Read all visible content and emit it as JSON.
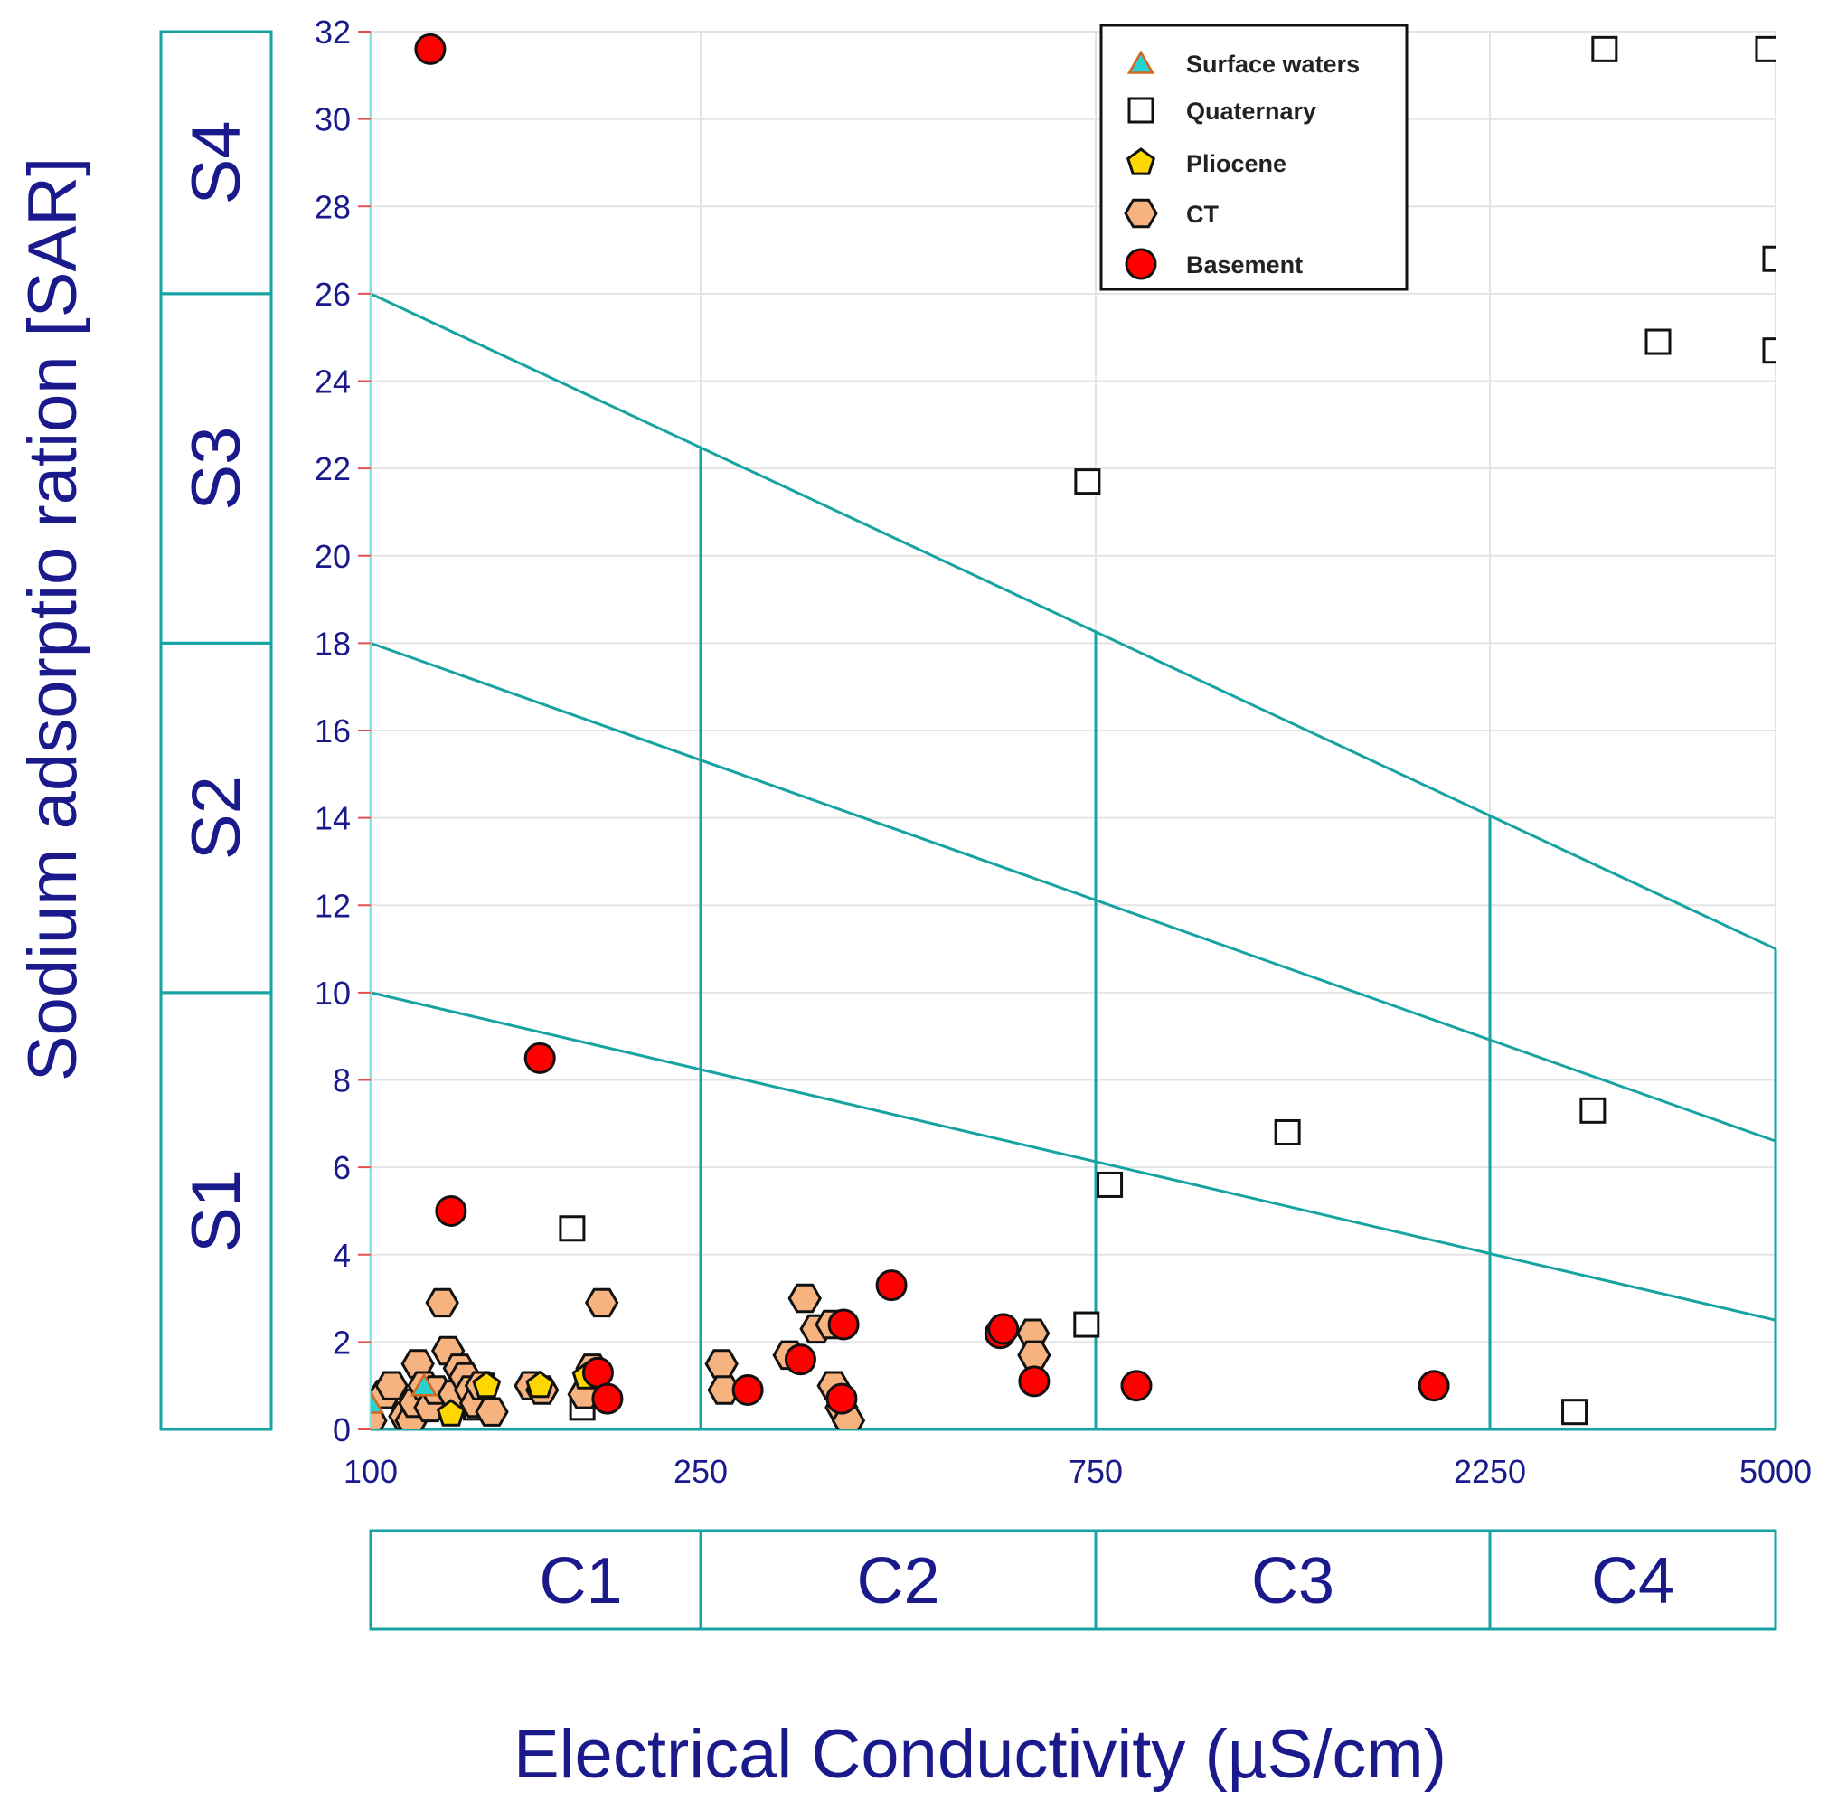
{
  "chart_data": {
    "type": "scatter",
    "title": "",
    "xlabel": "Electrical Conductivity (µS/cm)",
    "ylabel": "Sodium adsorptio ration [SAR]",
    "x_scale": "piecewise-log",
    "x_ticks": [
      100,
      250,
      750,
      2250,
      5000
    ],
    "x_tick_labels": [
      "100",
      "250",
      "750",
      "2250",
      "5000"
    ],
    "xlim": [
      100,
      5000
    ],
    "ylim": [
      0,
      32
    ],
    "y_ticks": [
      0,
      2,
      4,
      6,
      8,
      10,
      12,
      14,
      16,
      18,
      20,
      22,
      24,
      26,
      28,
      30,
      32
    ],
    "y_tick_labels": [
      "0",
      "2",
      "4",
      "6",
      "8",
      "10",
      "12",
      "14",
      "16",
      "18",
      "20",
      "22",
      "24",
      "26",
      "28",
      "30",
      "32"
    ],
    "grid": true,
    "legend_position": "top-right",
    "salinity_classes": [
      {
        "label": "C1",
        "from": 100,
        "to": 250
      },
      {
        "label": "C2",
        "from": 250,
        "to": 750
      },
      {
        "label": "C3",
        "from": 750,
        "to": 2250
      },
      {
        "label": "C4",
        "from": 2250,
        "to": 5000
      }
    ],
    "sodium_classes": [
      {
        "label": "S1",
        "from": 0,
        "to": 10
      },
      {
        "label": "S2",
        "from": 10,
        "to": 18
      },
      {
        "label": "S3",
        "from": 18,
        "to": 26
      },
      {
        "label": "S4",
        "from": 26,
        "to": 32
      }
    ],
    "boundary_lines": [
      {
        "name": "S1/S2",
        "points": [
          [
            100,
            10
          ],
          [
            5000,
            2.5
          ]
        ]
      },
      {
        "name": "S2/S3",
        "points": [
          [
            100,
            18
          ],
          [
            5000,
            6.6
          ]
        ]
      },
      {
        "name": "S3/S4",
        "points": [
          [
            100,
            26
          ],
          [
            5000,
            11
          ]
        ]
      }
    ],
    "series": [
      {
        "name": "Surface waters",
        "marker": "triangle",
        "color": "#2ad1d1",
        "points": [
          [
            100,
            0.6
          ],
          [
            116,
            1.0
          ]
        ]
      },
      {
        "name": "Quaternary",
        "marker": "square",
        "color": "#ffffff",
        "points": [
          [
            134,
            0.5
          ],
          [
            136,
            1.0
          ],
          [
            175,
            4.6
          ],
          [
            180,
            0.5
          ],
          [
            733,
            21.7
          ],
          [
            731,
            2.4
          ],
          [
            780,
            5.6
          ],
          [
            1280,
            6.8
          ],
          [
            3100,
            31.6
          ],
          [
            4900,
            31.6
          ],
          [
            5000,
            26.8
          ],
          [
            3600,
            24.9
          ],
          [
            5000,
            24.7
          ],
          [
            3000,
            7.3
          ],
          [
            2850,
            0.4
          ]
        ]
      },
      {
        "name": "Pliocene",
        "marker": "pentagon",
        "color": "#ffd700",
        "points": [
          [
            138,
            1.0
          ],
          [
            125,
            0.35
          ],
          [
            160,
            1.0
          ],
          [
            182,
            1.2
          ]
        ]
      },
      {
        "name": "CT",
        "marker": "hexagon",
        "color": "#f6b37f",
        "points": [
          [
            104,
            0.8
          ],
          [
            106,
            1.0
          ],
          [
            110,
            0.3
          ],
          [
            112,
            0.2
          ],
          [
            113,
            0.6
          ],
          [
            114,
            1.5
          ],
          [
            116,
            1.0
          ],
          [
            118,
            0.5
          ],
          [
            120,
            0.9
          ],
          [
            122,
            2.9
          ],
          [
            124,
            1.8
          ],
          [
            126,
            0.8
          ],
          [
            128,
            1.4
          ],
          [
            130,
            1.2
          ],
          [
            132,
            0.9
          ],
          [
            134,
            0.6
          ],
          [
            136,
            1.0
          ],
          [
            140,
            0.4
          ],
          [
            156,
            1.0
          ],
          [
            161,
            0.9
          ],
          [
            181,
            0.8
          ],
          [
            185,
            1.4
          ],
          [
            190,
            2.9
          ],
          [
            265,
            1.5
          ],
          [
            267,
            0.9
          ],
          [
            320,
            1.7
          ],
          [
            334,
            3.0
          ],
          [
            345,
            2.3
          ],
          [
            360,
            2.4
          ],
          [
            362,
            1.0
          ],
          [
            370,
            0.5
          ],
          [
            377,
            0.2
          ],
          [
            630,
            2.2
          ],
          [
            632,
            1.7
          ],
          [
            90,
            0.35
          ],
          [
            100,
            0.2
          ]
        ]
      },
      {
        "name": "Basement",
        "marker": "circle",
        "color": "#ff0000",
        "points": [
          [
            118,
            31.6
          ],
          [
            125,
            5.0
          ],
          [
            160,
            8.5
          ],
          [
            188,
            1.3
          ],
          [
            193,
            0.7
          ],
          [
            285,
            0.9
          ],
          [
            330,
            1.6
          ],
          [
            372,
            2.4
          ],
          [
            370,
            0.7
          ],
          [
            425,
            3.3
          ],
          [
            575,
            2.2
          ],
          [
            580,
            2.3
          ],
          [
            632,
            1.1
          ],
          [
            840,
            1.0
          ],
          [
            1925,
            1.0
          ]
        ]
      }
    ]
  }
}
